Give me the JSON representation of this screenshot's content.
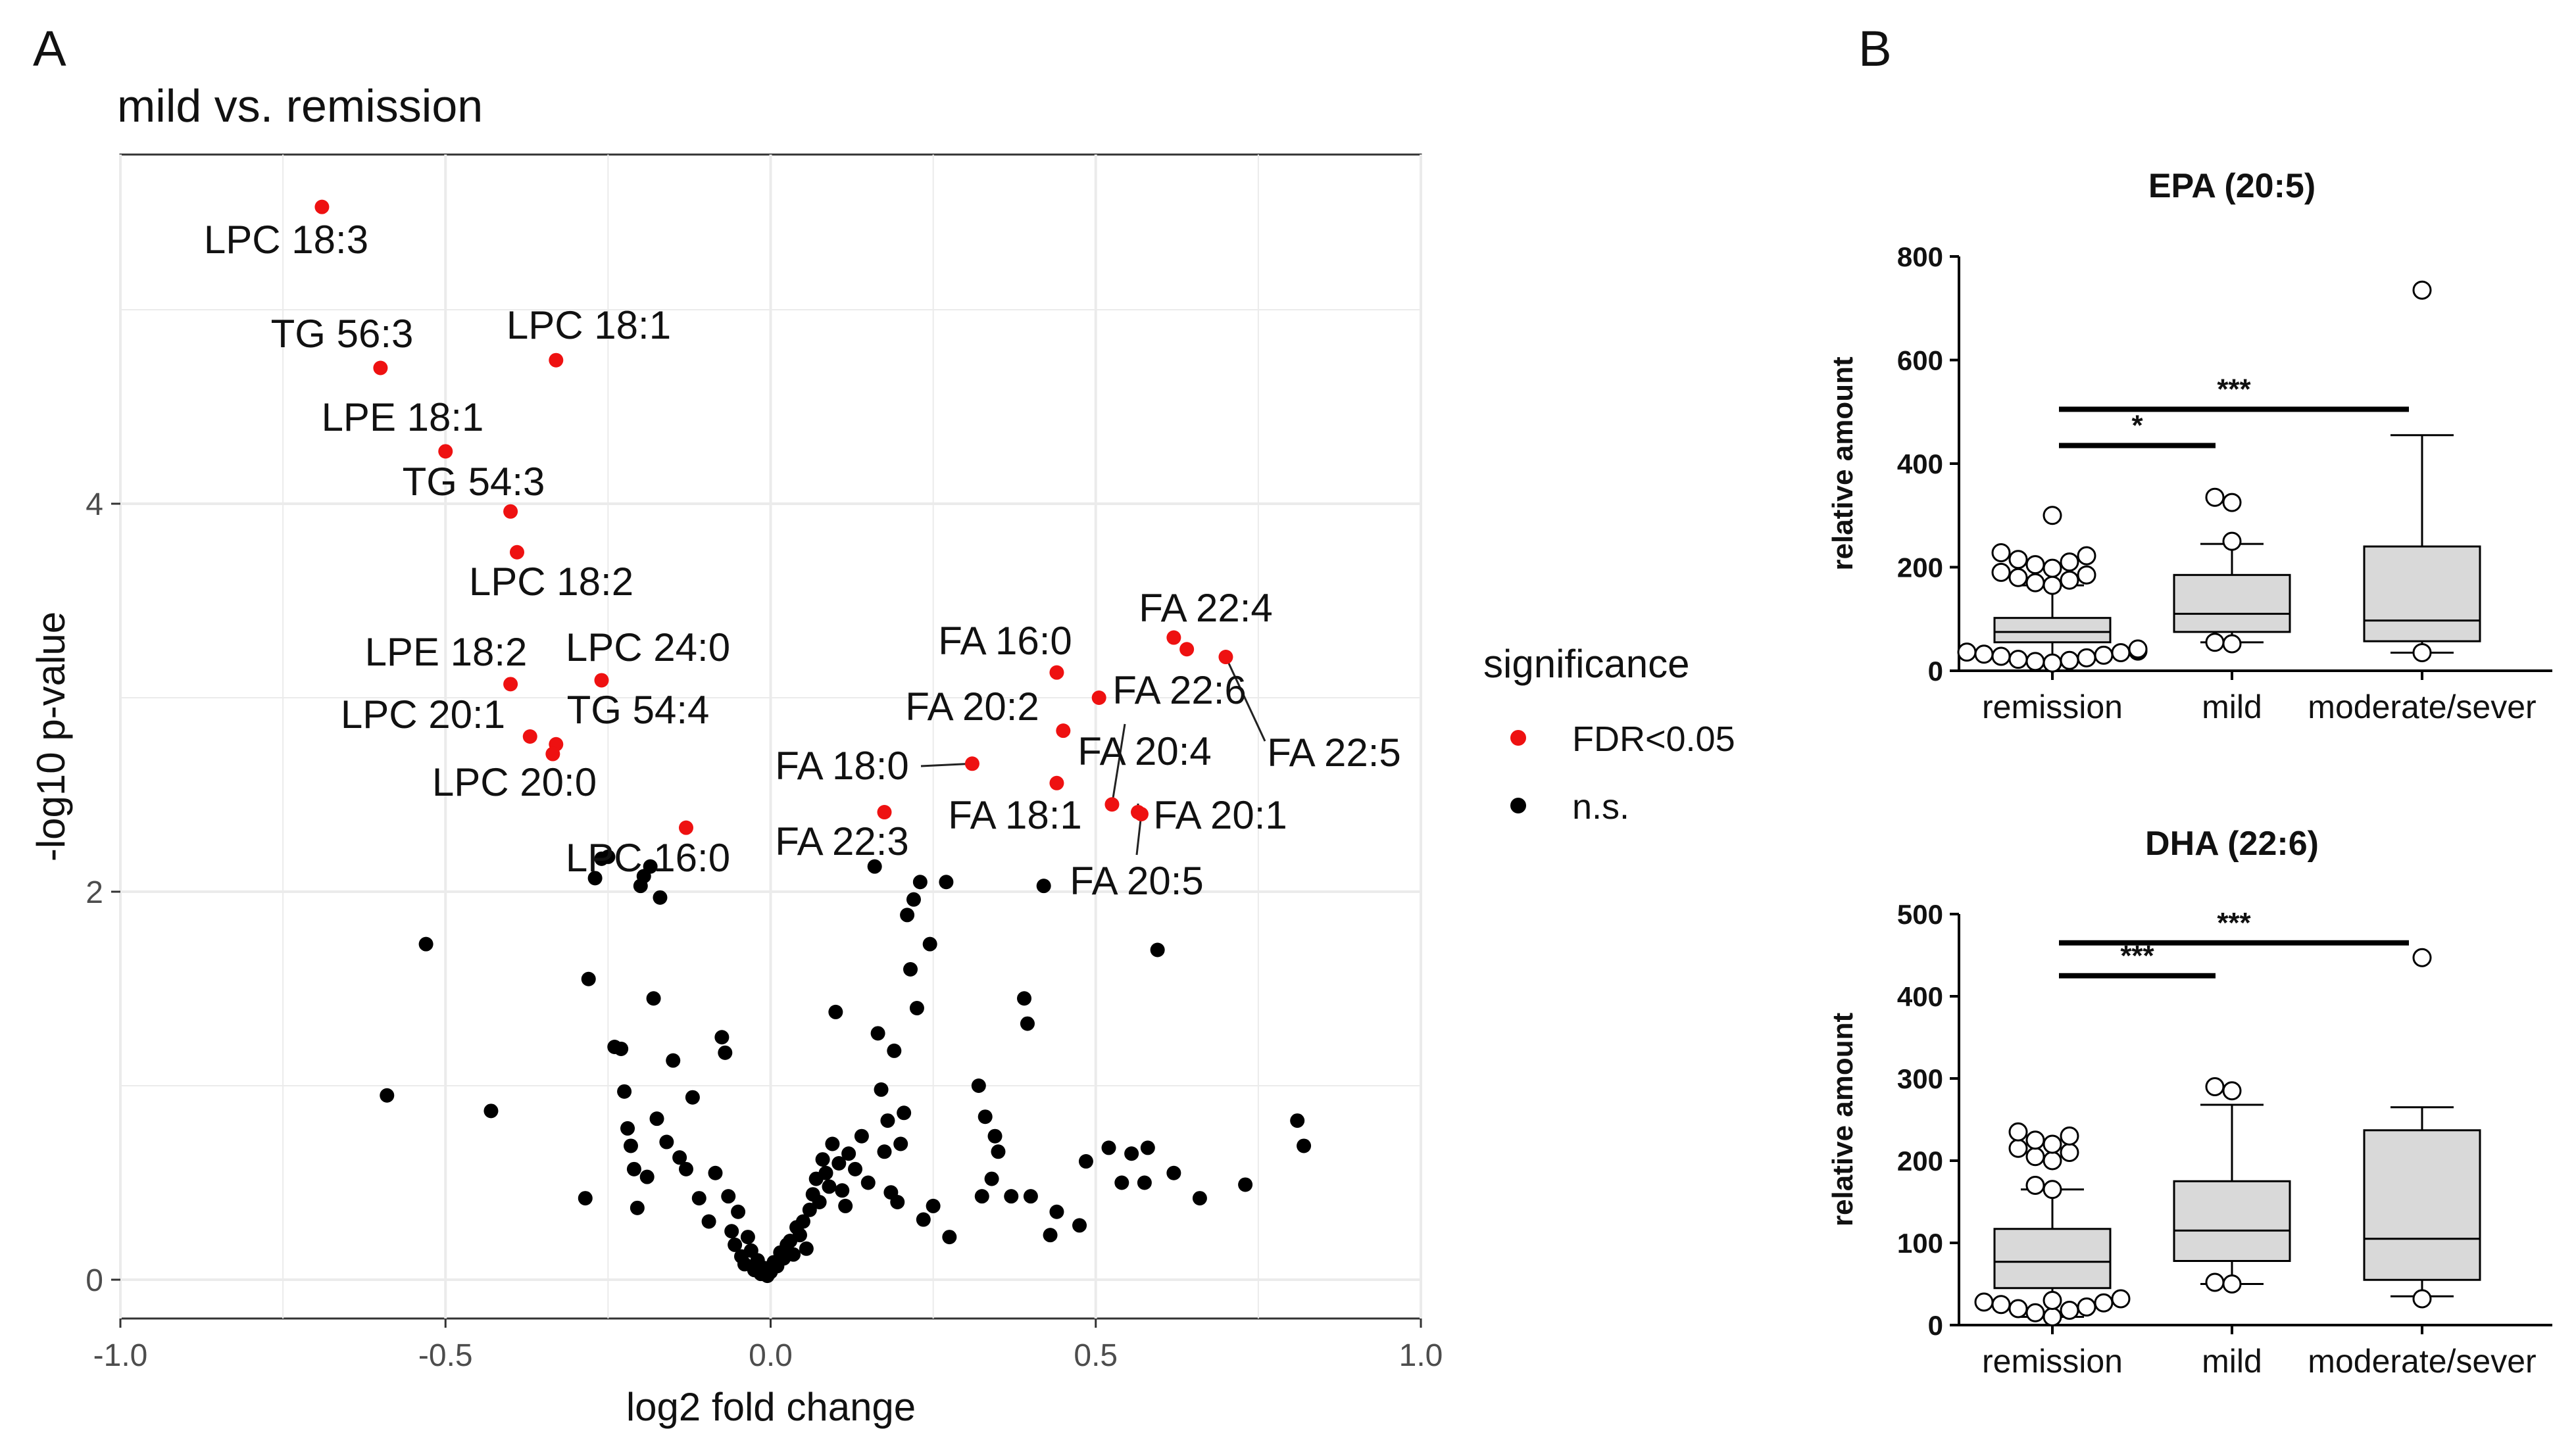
{
  "panels": {
    "left_letter": "A",
    "right_letter": "B"
  },
  "colors": {
    "significant": "#ee1111",
    "ns": "#000000",
    "grid": "#ebebeb",
    "box_fill": "#d9d9d9"
  },
  "chart_data": [
    {
      "type": "scatter",
      "title": "mild vs. remission",
      "xlabel": "log2 fold change",
      "ylabel": "-log10 p-value",
      "xlim": [
        -1.0,
        1.0
      ],
      "ylim": [
        -0.2,
        5.8
      ],
      "x_ticks": [
        "-1.0",
        "-0.5",
        "0.0",
        "0.5",
        "1.0"
      ],
      "y_ticks": [
        "0",
        "2",
        "4"
      ],
      "grid": true,
      "legend": {
        "title": "significance",
        "placement": "right",
        "entries": [
          {
            "label": "FDR<0.05",
            "color": "#ee1111"
          },
          {
            "label": "n.s.",
            "color": "#000000"
          }
        ]
      },
      "series": [
        {
          "name": "FDR<0.05",
          "points": [
            {
              "x": -0.69,
              "y": 5.53,
              "label": "LPC 18:3"
            },
            {
              "x": -0.6,
              "y": 4.7,
              "label": "TG 56:3"
            },
            {
              "x": -0.33,
              "y": 4.74,
              "label": "LPC 18:1"
            },
            {
              "x": -0.5,
              "y": 4.27,
              "label": "LPE 18:1"
            },
            {
              "x": -0.4,
              "y": 3.96,
              "label": "TG 54:3"
            },
            {
              "x": -0.39,
              "y": 3.75,
              "label": "LPC 18:2"
            },
            {
              "x": -0.4,
              "y": 3.07,
              "label": "LPE 18:2"
            },
            {
              "x": -0.26,
              "y": 3.09,
              "label": "LPC 24:0"
            },
            {
              "x": -0.37,
              "y": 2.8,
              "label": "LPC 20:1"
            },
            {
              "x": -0.33,
              "y": 2.76,
              "label": "TG 54:4"
            },
            {
              "x": -0.335,
              "y": 2.71,
              "label": "LPC 20:0"
            },
            {
              "x": -0.13,
              "y": 2.33,
              "label": "LPC 16:0"
            },
            {
              "x": 0.44,
              "y": 3.13,
              "label": "FA 16:0"
            },
            {
              "x": 0.62,
              "y": 3.31,
              "label": "FA 22:4"
            },
            {
              "x": 0.64,
              "y": 3.25
            },
            {
              "x": 0.7,
              "y": 3.21,
              "label": "FA 22:5"
            },
            {
              "x": 0.505,
              "y": 3.0,
              "label": "FA 22:6"
            },
            {
              "x": 0.45,
              "y": 2.83,
              "label": "FA 20:2"
            },
            {
              "x": 0.31,
              "y": 2.66,
              "label": "FA 18:0"
            },
            {
              "x": 0.44,
              "y": 2.56,
              "label": "FA 18:1"
            },
            {
              "x": 0.525,
              "y": 2.45,
              "label": "FA 20:4"
            },
            {
              "x": 0.565,
              "y": 2.41,
              "label": "FA 20:1"
            },
            {
              "x": 0.175,
              "y": 2.41,
              "label": "FA 22:3"
            },
            {
              "x": 0.57,
              "y": 2.4,
              "label": "FA 20:5"
            }
          ]
        },
        {
          "name": "n.s.",
          "points": [
            {
              "x": -0.59,
              "y": 0.95
            },
            {
              "x": -0.53,
              "y": 1.73
            },
            {
              "x": -0.43,
              "y": 0.87
            },
            {
              "x": -0.28,
              "y": 1.55
            },
            {
              "x": -0.285,
              "y": 0.42
            },
            {
              "x": -0.27,
              "y": 2.07
            },
            {
              "x": -0.26,
              "y": 2.17
            },
            {
              "x": -0.25,
              "y": 2.18
            },
            {
              "x": -0.24,
              "y": 1.2
            },
            {
              "x": -0.23,
              "y": 1.19
            },
            {
              "x": -0.225,
              "y": 0.97
            },
            {
              "x": -0.22,
              "y": 0.78
            },
            {
              "x": -0.215,
              "y": 0.69
            },
            {
              "x": -0.21,
              "y": 0.57
            },
            {
              "x": -0.205,
              "y": 0.37
            },
            {
              "x": -0.2,
              "y": 2.03
            },
            {
              "x": -0.195,
              "y": 2.08
            },
            {
              "x": -0.19,
              "y": 0.53
            },
            {
              "x": -0.185,
              "y": 2.13
            },
            {
              "x": -0.18,
              "y": 1.45
            },
            {
              "x": -0.175,
              "y": 0.83
            },
            {
              "x": -0.17,
              "y": 1.97
            },
            {
              "x": -0.16,
              "y": 0.71
            },
            {
              "x": -0.15,
              "y": 1.13
            },
            {
              "x": -0.14,
              "y": 0.63
            },
            {
              "x": -0.13,
              "y": 0.57
            },
            {
              "x": -0.12,
              "y": 0.94
            },
            {
              "x": -0.11,
              "y": 0.42
            },
            {
              "x": -0.095,
              "y": 0.3
            },
            {
              "x": -0.085,
              "y": 0.55
            },
            {
              "x": -0.075,
              "y": 1.25
            },
            {
              "x": -0.07,
              "y": 1.17
            },
            {
              "x": -0.065,
              "y": 0.43
            },
            {
              "x": -0.06,
              "y": 0.25
            },
            {
              "x": -0.055,
              "y": 0.18
            },
            {
              "x": -0.05,
              "y": 0.35
            },
            {
              "x": -0.045,
              "y": 0.12
            },
            {
              "x": -0.04,
              "y": 0.08
            },
            {
              "x": -0.035,
              "y": 0.22
            },
            {
              "x": -0.03,
              "y": 0.15
            },
            {
              "x": -0.025,
              "y": 0.05
            },
            {
              "x": -0.02,
              "y": 0.1
            },
            {
              "x": -0.015,
              "y": 0.03
            },
            {
              "x": -0.01,
              "y": 0.06
            },
            {
              "x": -0.005,
              "y": 0.02
            },
            {
              "x": 0.0,
              "y": 0.04
            },
            {
              "x": 0.005,
              "y": 0.09
            },
            {
              "x": 0.01,
              "y": 0.07
            },
            {
              "x": 0.015,
              "y": 0.14
            },
            {
              "x": 0.02,
              "y": 0.11
            },
            {
              "x": 0.025,
              "y": 0.18
            },
            {
              "x": 0.03,
              "y": 0.2
            },
            {
              "x": 0.035,
              "y": 0.13
            },
            {
              "x": 0.04,
              "y": 0.27
            },
            {
              "x": 0.045,
              "y": 0.23
            },
            {
              "x": 0.05,
              "y": 0.3
            },
            {
              "x": 0.055,
              "y": 0.16
            },
            {
              "x": 0.06,
              "y": 0.36
            },
            {
              "x": 0.065,
              "y": 0.44
            },
            {
              "x": 0.07,
              "y": 0.52
            },
            {
              "x": 0.075,
              "y": 0.4
            },
            {
              "x": 0.08,
              "y": 0.62
            },
            {
              "x": 0.085,
              "y": 0.55
            },
            {
              "x": 0.09,
              "y": 0.48
            },
            {
              "x": 0.095,
              "y": 0.7
            },
            {
              "x": 0.1,
              "y": 1.38
            },
            {
              "x": 0.105,
              "y": 0.6
            },
            {
              "x": 0.11,
              "y": 0.46
            },
            {
              "x": 0.115,
              "y": 0.38
            },
            {
              "x": 0.12,
              "y": 0.65
            },
            {
              "x": 0.13,
              "y": 0.57
            },
            {
              "x": 0.14,
              "y": 0.74
            },
            {
              "x": 0.15,
              "y": 0.5
            },
            {
              "x": 0.16,
              "y": 2.13
            },
            {
              "x": 0.165,
              "y": 1.27
            },
            {
              "x": 0.17,
              "y": 0.98
            },
            {
              "x": 0.175,
              "y": 0.66
            },
            {
              "x": 0.18,
              "y": 0.82
            },
            {
              "x": 0.185,
              "y": 0.45
            },
            {
              "x": 0.19,
              "y": 1.18
            },
            {
              "x": 0.195,
              "y": 0.4
            },
            {
              "x": 0.2,
              "y": 0.7
            },
            {
              "x": 0.205,
              "y": 0.86
            },
            {
              "x": 0.21,
              "y": 1.88
            },
            {
              "x": 0.215,
              "y": 1.6
            },
            {
              "x": 0.22,
              "y": 1.96
            },
            {
              "x": 0.225,
              "y": 1.4
            },
            {
              "x": 0.23,
              "y": 2.05
            },
            {
              "x": 0.235,
              "y": 0.31
            },
            {
              "x": 0.245,
              "y": 1.73
            },
            {
              "x": 0.25,
              "y": 0.38
            },
            {
              "x": 0.27,
              "y": 2.05
            },
            {
              "x": 0.275,
              "y": 0.22
            },
            {
              "x": 0.32,
              "y": 1.0
            },
            {
              "x": 0.325,
              "y": 0.43
            },
            {
              "x": 0.33,
              "y": 0.84
            },
            {
              "x": 0.34,
              "y": 0.52
            },
            {
              "x": 0.345,
              "y": 0.74
            },
            {
              "x": 0.35,
              "y": 0.66
            },
            {
              "x": 0.37,
              "y": 0.43
            },
            {
              "x": 0.39,
              "y": 1.45
            },
            {
              "x": 0.395,
              "y": 1.32
            },
            {
              "x": 0.4,
              "y": 0.43
            },
            {
              "x": 0.42,
              "y": 2.03
            },
            {
              "x": 0.43,
              "y": 0.23
            },
            {
              "x": 0.44,
              "y": 0.35
            },
            {
              "x": 0.475,
              "y": 0.28
            },
            {
              "x": 0.485,
              "y": 0.61
            },
            {
              "x": 0.52,
              "y": 0.68
            },
            {
              "x": 0.54,
              "y": 0.5
            },
            {
              "x": 0.555,
              "y": 0.65
            },
            {
              "x": 0.575,
              "y": 0.5
            },
            {
              "x": 0.58,
              "y": 0.68
            },
            {
              "x": 0.595,
              "y": 1.7
            },
            {
              "x": 0.62,
              "y": 0.55
            },
            {
              "x": 0.66,
              "y": 0.42
            },
            {
              "x": 0.73,
              "y": 0.49
            },
            {
              "x": 0.81,
              "y": 0.82
            },
            {
              "x": 0.82,
              "y": 0.69
            }
          ]
        }
      ]
    },
    {
      "type": "box",
      "title": "EPA (20:5)",
      "ylabel": "relative amount",
      "ylim": [
        0,
        800
      ],
      "y_ticks": [
        "0",
        "200",
        "400",
        "600",
        "800"
      ],
      "categories": [
        "remission",
        "mild",
        "moderate/sever"
      ],
      "boxes": [
        {
          "whisker_low": 20,
          "q1": 55,
          "median": 75,
          "q3": 102,
          "whisker_high": 165,
          "outliers": [
            15,
            18,
            20,
            22,
            25,
            28,
            30,
            32,
            35,
            36,
            38,
            40,
            42,
            165,
            170,
            175,
            180,
            185,
            190,
            198,
            205,
            210,
            215,
            222,
            228,
            300
          ]
        },
        {
          "whisker_low": 55,
          "q1": 75,
          "median": 110,
          "q3": 185,
          "whisker_high": 245,
          "outliers": [
            52,
            55,
            250,
            325,
            335
          ]
        },
        {
          "whisker_low": 35,
          "q1": 57,
          "median": 97,
          "q3": 240,
          "whisker_high": 455,
          "outliers": [
            35,
            735
          ]
        }
      ],
      "annotations": [
        {
          "from": "remission",
          "to": "mild",
          "y": 435,
          "text": "*"
        },
        {
          "from": "remission",
          "to": "moderate/sever",
          "y": 505,
          "text": "***"
        }
      ]
    },
    {
      "type": "box",
      "title": "DHA (22:6)",
      "ylabel": "relative amount",
      "ylim": [
        0,
        500
      ],
      "y_ticks": [
        "0",
        "100",
        "200",
        "300",
        "400",
        "500"
      ],
      "categories": [
        "remission",
        "mild",
        "moderate/sever"
      ],
      "boxes": [
        {
          "whisker_low": 10,
          "q1": 45,
          "median": 77,
          "q3": 117,
          "whisker_high": 165,
          "outliers": [
            10,
            15,
            18,
            20,
            22,
            25,
            27,
            28,
            30,
            32,
            165,
            170,
            200,
            205,
            210,
            215,
            220,
            225,
            230,
            235
          ]
        },
        {
          "whisker_low": 50,
          "q1": 78,
          "median": 115,
          "q3": 175,
          "whisker_high": 268,
          "outliers": [
            50,
            52,
            285,
            290
          ]
        },
        {
          "whisker_low": 35,
          "q1": 55,
          "median": 105,
          "q3": 237,
          "whisker_high": 265,
          "outliers": [
            32,
            447
          ]
        }
      ],
      "annotations": [
        {
          "from": "remission",
          "to": "mild",
          "y": 425,
          "text": "***"
        },
        {
          "from": "remission",
          "to": "moderate/sever",
          "y": 465,
          "text": "***"
        }
      ]
    }
  ]
}
